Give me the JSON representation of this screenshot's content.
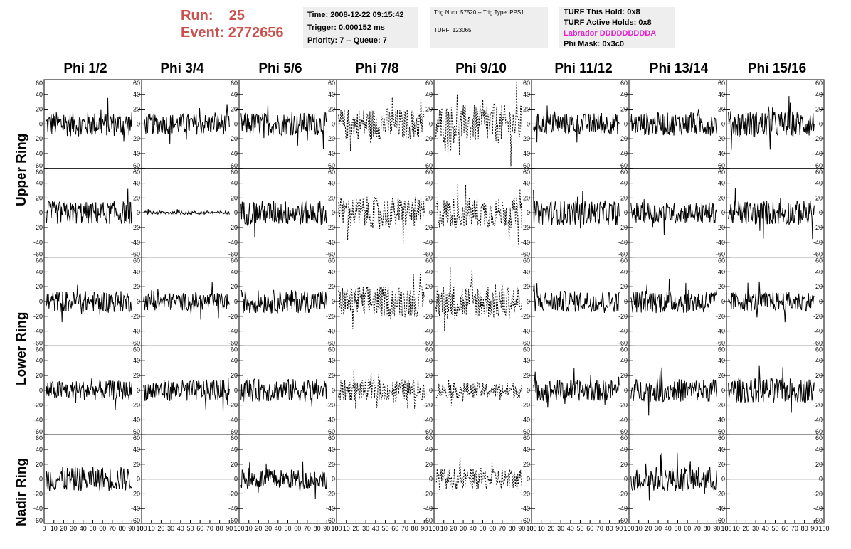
{
  "header": {
    "run_label": "Run:",
    "run_value": "25",
    "event_label": "Event:",
    "event_value": "2772656",
    "time": "Time: 2008-12-22 09:15:42",
    "trigger": "Trigger: 0.000152 ms",
    "priority": "Priority: 7 -- Queue: 7",
    "trig_num": "Trig Num: 57520 -- Trig Type: PPS1",
    "turf": "TURF: 123065",
    "turf_hold": "TURF This Hold: 0x8",
    "turf_active": "TURF Active Holds: 0x8",
    "labrador": "Labrador DDDDDDDDDA",
    "phi_mask": "Phi Mask: 0x3c0",
    "labrador_color": "#e41fd0",
    "run_color": "#c9524e"
  },
  "columns": [
    "Phi 1/2",
    "Phi 3/4",
    "Phi 5/6",
    "Phi 7/8",
    "Phi 9/10",
    "Phi 11/12",
    "Phi 13/14",
    "Phi 15/16"
  ],
  "rings": [
    "Upper Ring",
    "Lower Ring",
    "Nadir Ring"
  ],
  "chart_data": {
    "type": "line",
    "grid": false,
    "rows": 5,
    "cols": 8,
    "xlim": [
      0,
      100
    ],
    "ylim": [
      -60,
      60
    ],
    "x_ticks": [
      0,
      10,
      20,
      30,
      40,
      50,
      60,
      70,
      80,
      90,
      100
    ],
    "y_ticks": [
      -60,
      -40,
      -20,
      0,
      20,
      40,
      60
    ],
    "amplitude": [
      [
        14,
        12,
        13,
        18,
        22,
        12,
        13,
        15
      ],
      [
        13,
        2,
        14,
        18,
        17,
        14,
        12,
        14
      ],
      [
        12,
        10,
        13,
        18,
        20,
        12,
        13,
        11
      ],
      [
        11,
        12,
        13,
        12,
        9,
        12,
        13,
        14
      ],
      [
        14,
        0,
        11,
        0,
        12,
        0,
        14,
        0
      ]
    ],
    "dashed": [
      [
        false,
        false,
        false,
        true,
        true,
        false,
        false,
        false
      ],
      [
        false,
        false,
        false,
        true,
        true,
        false,
        false,
        false
      ],
      [
        false,
        false,
        false,
        true,
        true,
        false,
        false,
        false
      ],
      [
        false,
        false,
        false,
        true,
        true,
        false,
        false,
        false
      ],
      [
        false,
        false,
        false,
        false,
        true,
        false,
        false,
        false
      ]
    ]
  }
}
